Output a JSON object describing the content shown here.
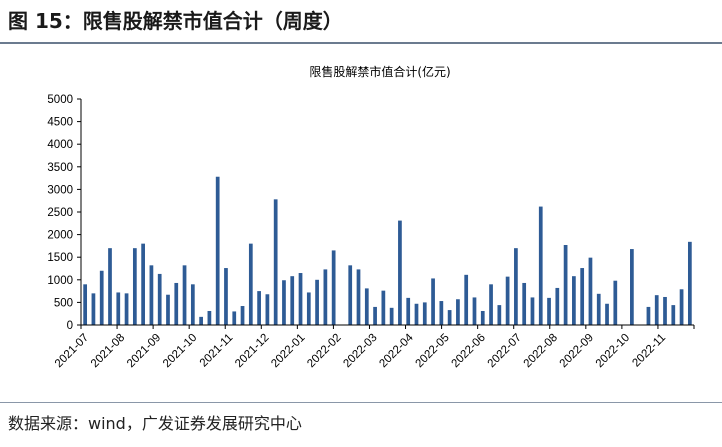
{
  "figure": {
    "title": "图 15：限售股解禁市值合计（周度）",
    "source": "数据来源：wind，广发证券发展研究中心"
  },
  "colors": {
    "bar": "#2e5b95",
    "axis": "#000000"
  },
  "chart_data": {
    "type": "bar",
    "title": "限售股解禁市值合计(亿元)",
    "xlabel": "",
    "ylabel": "",
    "ylim": [
      0,
      5000
    ],
    "yticks": [
      0,
      500,
      1000,
      1500,
      2000,
      2500,
      3000,
      3500,
      4000,
      4500,
      5000
    ],
    "month_labels": [
      "2021-07",
      "2021-08",
      "2021-09",
      "2021-10",
      "2021-11",
      "2021-12",
      "2022-01",
      "2022-02",
      "2022-03",
      "2022-04",
      "2022-05",
      "2022-06",
      "2022-07",
      "2022-08",
      "2022-09",
      "2022-10",
      "2022-11"
    ],
    "values": [
      900,
      700,
      1200,
      1700,
      720,
      700,
      1700,
      1800,
      1320,
      1130,
      670,
      930,
      1320,
      900,
      180,
      310,
      3280,
      1260,
      300,
      420,
      1800,
      750,
      680,
      2780,
      990,
      1080,
      1150,
      720,
      1000,
      1230,
      1650,
      0,
      1320,
      1230,
      810,
      400,
      760,
      380,
      2310,
      600,
      470,
      500,
      1030,
      530,
      330,
      570,
      1110,
      610,
      310,
      900,
      440,
      1070,
      1700,
      930,
      610,
      2620,
      600,
      820,
      1770,
      1080,
      1260,
      1490,
      690,
      470,
      980,
      0,
      1680,
      0,
      400,
      660,
      620,
      440,
      790,
      1840
    ]
  }
}
